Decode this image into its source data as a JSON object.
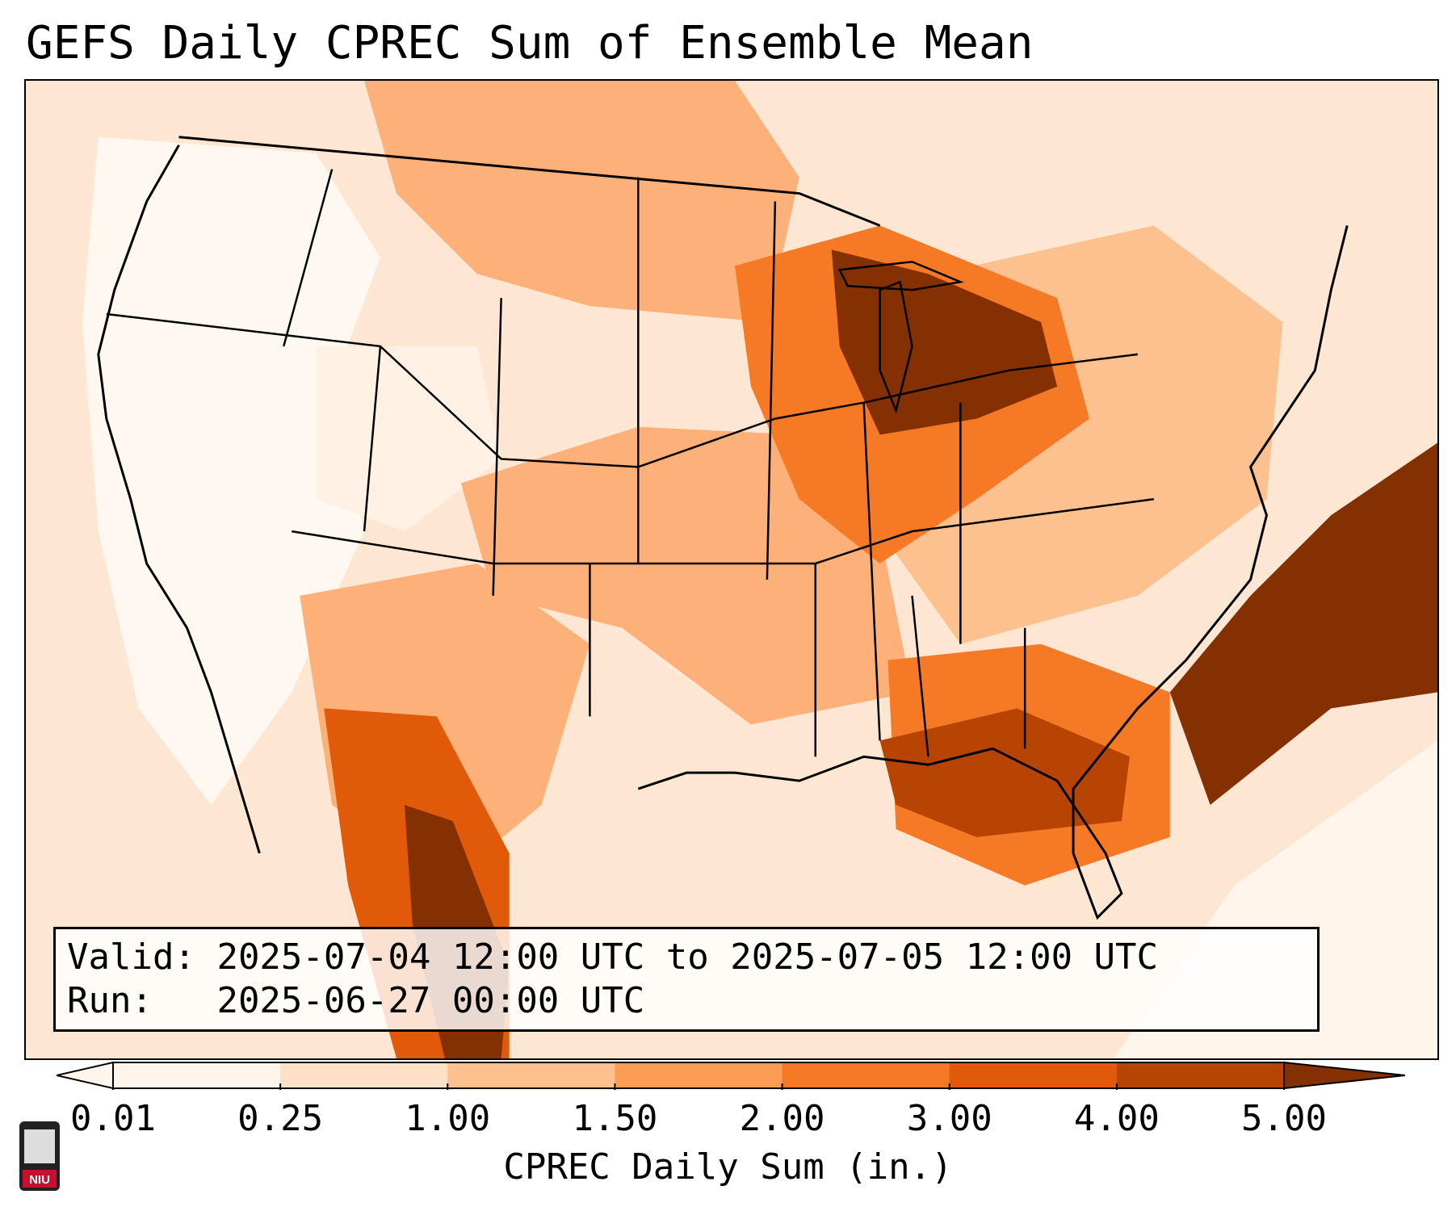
{
  "title": "GEFS Daily CPREC Sum of Ensemble Mean",
  "info": {
    "valid_label": "Valid:",
    "valid_value": "2025-07-04 12:00 UTC to 2025-07-05 12:00 UTC",
    "run_label": "Run:",
    "run_value": "2025-06-27 00:00 UTC"
  },
  "colorbar": {
    "label": "CPREC Daily Sum (in.)",
    "ticks": [
      "0.01",
      "0.25",
      "1.00",
      "1.50",
      "2.00",
      "3.00",
      "4.00",
      "5.00"
    ],
    "colors": [
      "#fff5eb",
      "#fde0c5",
      "#fdc08f",
      "#fd9c55",
      "#f67a25",
      "#e05a0a",
      "#b74403",
      "#843003"
    ]
  },
  "logo": {
    "text": "NIU",
    "color": "#c8102e"
  },
  "colors": {
    "ocean_light": "#fff5eb",
    "land_light": "#fde7d3",
    "medium": "#fdb078",
    "high": "#f67a25",
    "heavy": "#c94d07",
    "extreme": "#843003",
    "border": "#000000"
  }
}
